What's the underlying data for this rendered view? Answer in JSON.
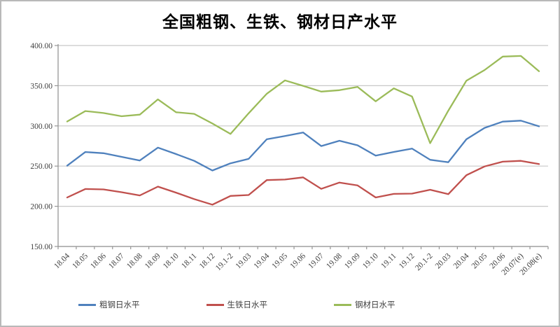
{
  "title": "全国粗钢、生铁、钢材日产水平",
  "chart_data": {
    "type": "line",
    "categories": [
      "18.04",
      "18.05",
      "18.06",
      "18.07",
      "18.08",
      "18.09",
      "18.10",
      "18.11",
      "18.12",
      "19.1-2",
      "19.03",
      "19.04",
      "19.05",
      "19.06",
      "19.07",
      "19.08",
      "19.09",
      "19.10",
      "19.11",
      "19.12",
      "20.1-2",
      "20.03",
      "20.04",
      "20.05",
      "20.06",
      "20.07(e)",
      "20.08(e)"
    ],
    "series": [
      {
        "name": "粗钢日水平",
        "color": "#4f81bd",
        "values": [
          250.5,
          267.5,
          266.0,
          261.5,
          257.0,
          273.0,
          265.0,
          256.5,
          244.5,
          253.5,
          259.0,
          283.4,
          287.4,
          291.8,
          274.9,
          281.5,
          275.9,
          263.0,
          267.6,
          271.8,
          257.8,
          254.8,
          283.4,
          297.6,
          305.3,
          306.5,
          299.5
        ]
      },
      {
        "name": "生铁日水平",
        "color": "#c0504d",
        "values": [
          211.0,
          221.5,
          221.0,
          217.5,
          213.5,
          224.5,
          217.0,
          209.0,
          202.0,
          212.9,
          214.0,
          232.6,
          233.3,
          236.0,
          221.7,
          229.5,
          226.0,
          211.0,
          215.4,
          215.8,
          220.6,
          215.1,
          238.7,
          249.6,
          255.5,
          256.5,
          252.5
        ]
      },
      {
        "name": "钢材日水平",
        "color": "#9bbb59",
        "values": [
          305.5,
          318.5,
          316.0,
          312.0,
          314.0,
          333.0,
          317.0,
          315.0,
          303.0,
          290.0,
          315.7,
          340.0,
          356.6,
          349.8,
          342.7,
          344.4,
          348.5,
          330.6,
          346.7,
          336.6,
          278.5,
          318.9,
          356.3,
          369.5,
          386.2,
          387.0,
          368.0
        ]
      }
    ],
    "title": "全国粗钢、生铁、钢材日产水平",
    "xlabel": "",
    "ylabel": "",
    "ylim": [
      150,
      400
    ],
    "ytick_step": 50,
    "ytick_labels": [
      "150.00",
      "200.00",
      "250.00",
      "300.00",
      "350.00",
      "400.00"
    ],
    "grid": true,
    "legend_position": "bottom"
  },
  "colors": {
    "gridline": "#c8c8c8",
    "axis": "#969696",
    "tick_text": "#404040",
    "border": "#b9b9b9"
  }
}
